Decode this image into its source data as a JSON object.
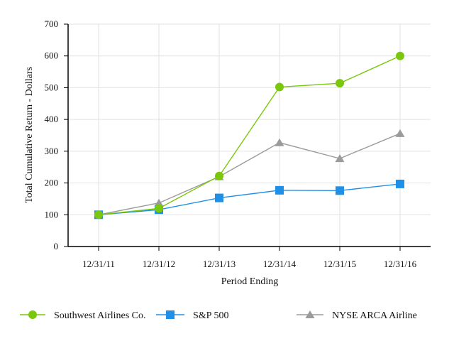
{
  "chart_data": {
    "type": "line",
    "title": "",
    "xlabel": "Period Ending",
    "ylabel": "Total Cumulative Return - Dollars",
    "categories": [
      "12/31/11",
      "12/31/12",
      "12/31/13",
      "12/31/14",
      "12/31/15",
      "12/31/16"
    ],
    "ylim": [
      0,
      700
    ],
    "yticks": [
      0,
      100,
      200,
      300,
      400,
      500,
      600,
      700
    ],
    "grid": true,
    "legend_position": "bottom",
    "series": [
      {
        "name": "Southwest Airlines Co.",
        "marker": "circle",
        "color": "#7ac70c",
        "values": [
          100,
          120,
          222,
          502,
          514,
          600
        ]
      },
      {
        "name": "S&P 500",
        "marker": "square",
        "color": "#1e90e8",
        "values": [
          100,
          116,
          153,
          177,
          176,
          197
        ]
      },
      {
        "name": "NYSE ARCA Airline",
        "marker": "triangle",
        "color": "#9b9b9b",
        "values": [
          100,
          137,
          220,
          327,
          277,
          356
        ]
      }
    ]
  }
}
